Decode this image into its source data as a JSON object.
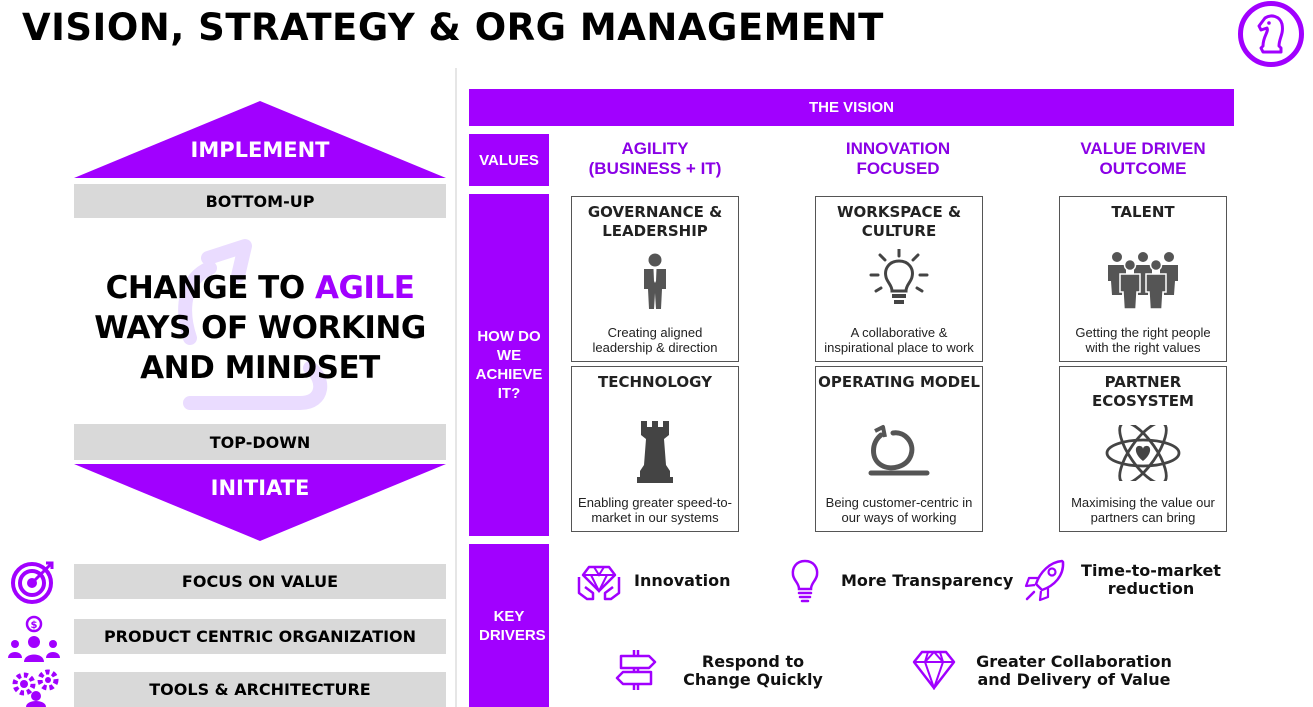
{
  "page": {
    "title": "VISION, STRATEGY & ORG MANAGEMENT"
  },
  "colors": {
    "accent": "#a100ff",
    "grey": "#d9d9d9",
    "text": "#000000"
  },
  "left": {
    "implement": "IMPLEMENT",
    "bottom_up": "BOTTOM-UP",
    "change_line1_a": "CHANGE TO ",
    "change_line1_b": "AGILE",
    "change_line2": "WAYS OF WORKING",
    "change_line3": "AND MINDSET",
    "top_down": "TOP-DOWN",
    "initiate": "INITIATE",
    "bars": [
      {
        "label": "FOCUS ON VALUE",
        "icon": "target-icon"
      },
      {
        "label": "PRODUCT CENTRIC ORGANIZATION",
        "icon": "people-money-icon"
      },
      {
        "label": "TOOLS & ARCHITECTURE",
        "icon": "gears-person-icon"
      }
    ]
  },
  "vision": {
    "header": "THE VISION",
    "values_label": "VALUES",
    "values": [
      {
        "line1": "AGILITY",
        "line2": "(BUSINESS + IT)"
      },
      {
        "line1": "INNOVATION",
        "line2": "FOCUSED"
      },
      {
        "line1": "VALUE DRIVEN",
        "line2": "OUTCOME"
      }
    ],
    "how_label": "HOW DO WE ACHIEVE IT?",
    "cards": [
      {
        "title": "GOVERNANCE & LEADERSHIP",
        "desc": "Creating aligned leadership & direction",
        "icon": "leader-icon"
      },
      {
        "title": "WORKSPACE & CULTURE",
        "desc": "A collaborative & inspirational place to work",
        "icon": "lightbulb-icon"
      },
      {
        "title": "TALENT",
        "desc": "Getting the right people with the right values",
        "icon": "team-icon"
      },
      {
        "title": "TECHNOLOGY",
        "desc": "Enabling greater speed-to-market in our systems",
        "icon": "rook-icon"
      },
      {
        "title": "OPERATING MODEL",
        "desc": "Being customer-centric in our ways of working",
        "icon": "cycle-arrow-icon"
      },
      {
        "title": "PARTNER ECOSYSTEM",
        "desc": "Maximising the value our partners can bring",
        "icon": "atom-heart-icon"
      }
    ],
    "drivers_label": "KEY DRIVERS",
    "drivers": [
      {
        "label": "Innovation",
        "icon": "diamond-hands-icon"
      },
      {
        "label": "More Transparency",
        "icon": "bulb-outline-icon"
      },
      {
        "label": "Time-to-market reduction",
        "icon": "rocket-icon"
      },
      {
        "label": "Respond to Change Quickly",
        "icon": "signpost-icon"
      },
      {
        "label": "Greater Collaboration and Delivery of Value",
        "icon": "diamond-icon"
      }
    ]
  }
}
